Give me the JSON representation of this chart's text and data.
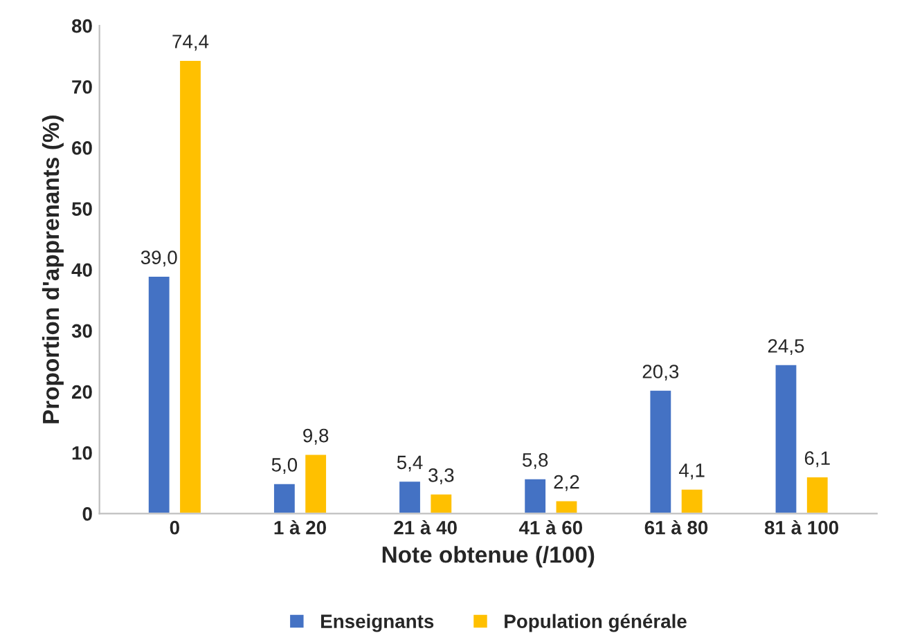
{
  "chart_data": {
    "type": "bar",
    "xlabel": "Note obtenue (/100)",
    "ylabel": "Proportion d'apprenants (%)",
    "categories": [
      "0",
      "1 à 20",
      "21 à 40",
      "41 à 60",
      "61 à 80",
      "81 à 100"
    ],
    "series": [
      {
        "name": "Enseignants",
        "color": "#4472c4",
        "values": [
          39.0,
          5.0,
          5.4,
          5.8,
          20.3,
          24.5
        ],
        "value_labels": [
          "39,0",
          "5,0",
          "5,4",
          "5,8",
          "20,3",
          "24,5"
        ]
      },
      {
        "name": "Population générale",
        "color": "#ffc000",
        "values": [
          74.4,
          9.8,
          3.3,
          2.2,
          4.1,
          6.1
        ],
        "value_labels": [
          "74,4",
          "9,8",
          "3,3",
          "2,2",
          "4,1",
          "6,1"
        ]
      }
    ],
    "ylim": [
      0,
      80
    ],
    "yticks": [
      0,
      10,
      20,
      30,
      40,
      50,
      60,
      70,
      80
    ],
    "grid": false,
    "legend": "bottom"
  }
}
